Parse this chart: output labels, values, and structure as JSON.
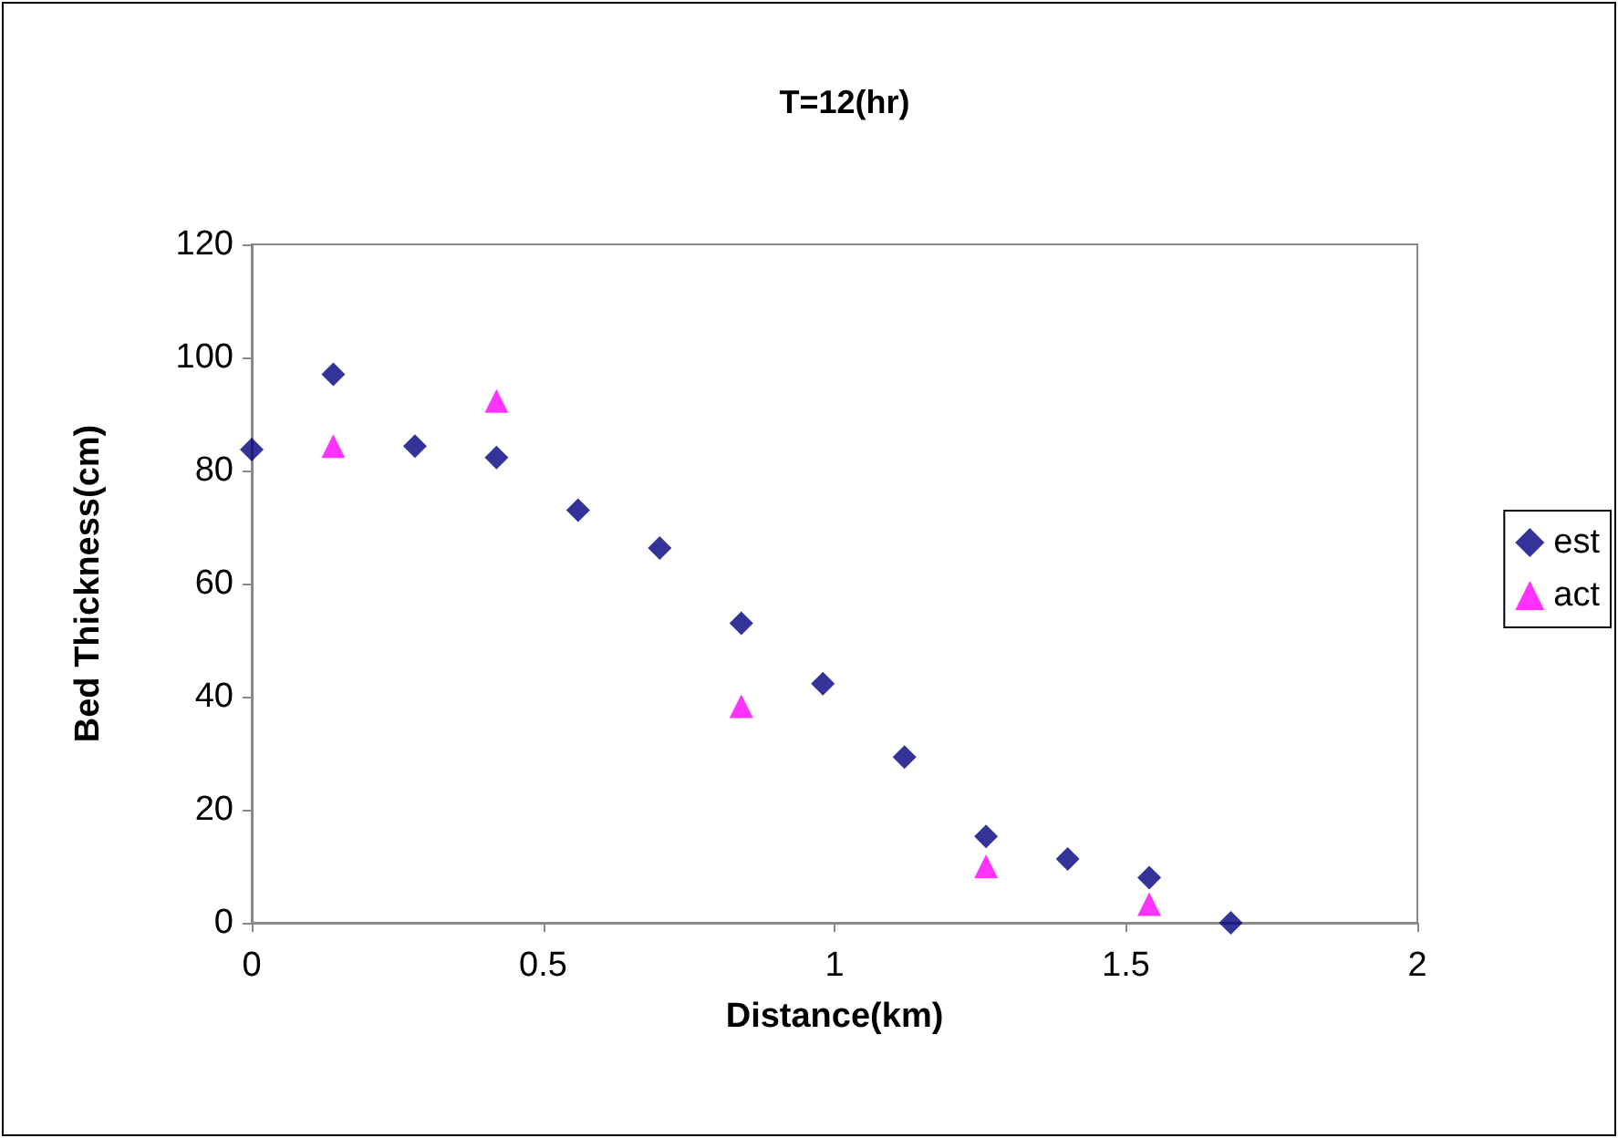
{
  "chart_data": {
    "type": "scatter",
    "title": "T=12(hr)",
    "xlabel": "Distance(km)",
    "ylabel": "Bed Thickness(cm)",
    "xlim": [
      0,
      2
    ],
    "xticks": [
      0,
      0.5,
      1,
      1.5,
      2
    ],
    "ylim": [
      0,
      120
    ],
    "yticks": [
      0,
      20,
      40,
      60,
      80,
      100,
      120
    ],
    "grid": false,
    "legend": "right",
    "series": [
      {
        "name": "est",
        "color": "#000080",
        "marker": "diamond",
        "x": [
          0,
          0.14,
          0.28,
          0.42,
          0.56,
          0.7,
          0.84,
          0.98,
          1.12,
          1.26,
          1.4,
          1.54,
          1.68
        ],
        "values": [
          83.7,
          97,
          84.3,
          82.3,
          73,
          66.3,
          53,
          42.3,
          29.3,
          15.3,
          11.3,
          8,
          0
        ]
      },
      {
        "name": "act",
        "color": "#ff00ff",
        "marker": "triangle",
        "x": [
          0.14,
          0.42,
          0.84,
          1.26,
          1.54
        ],
        "values": [
          84.3,
          92.3,
          38.3,
          10,
          3.3
        ]
      }
    ]
  }
}
